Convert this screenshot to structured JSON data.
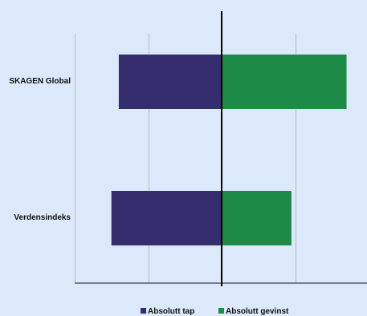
{
  "chart_data": {
    "type": "bar",
    "orientation": "horizontal",
    "stacked": "diverging",
    "categories": [
      "SKAGEN Global",
      "Verdensindeks"
    ],
    "series": [
      {
        "name": "Absolutt tap",
        "values": [
          -1.4,
          -1.5
        ],
        "color": "#352d6d"
      },
      {
        "name": "Absolutt gevinst",
        "values": [
          1.7,
          0.95
        ],
        "color": "#1e8a47"
      }
    ],
    "xlim": [
      -2.0,
      2.0
    ],
    "grid": true,
    "legend_position": "bottom"
  }
}
